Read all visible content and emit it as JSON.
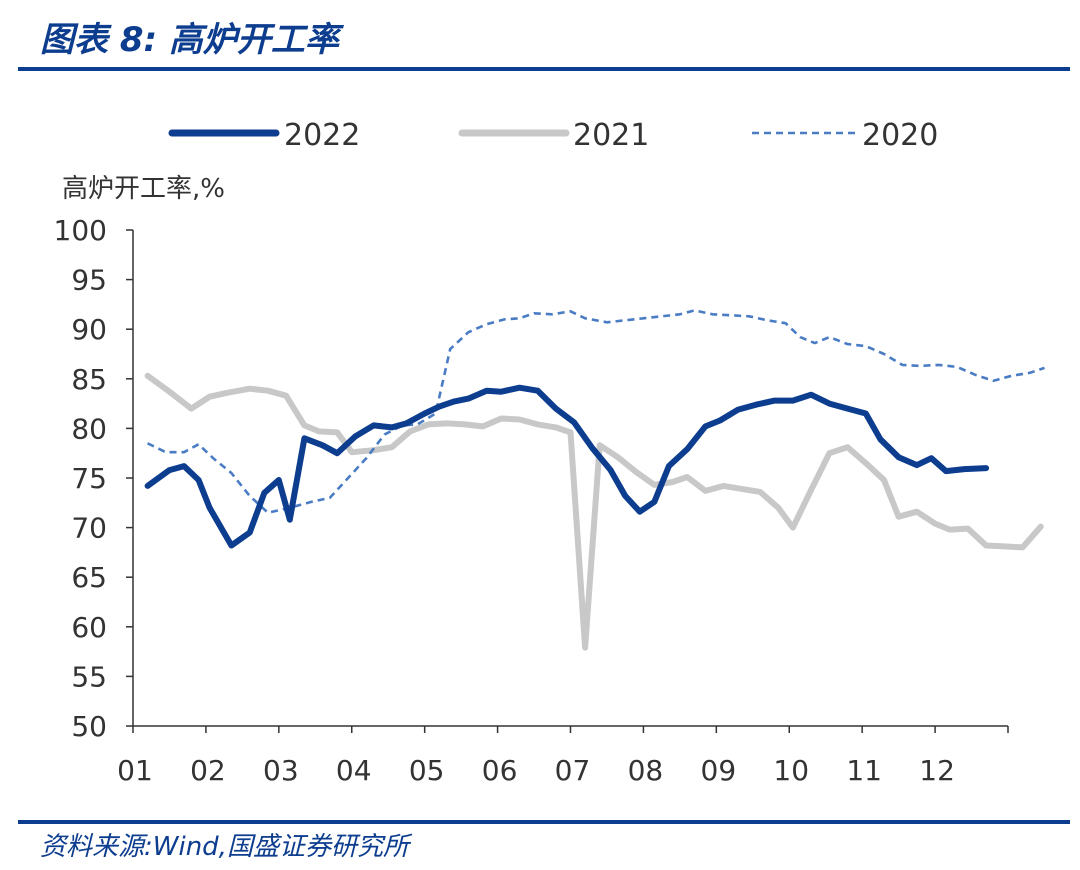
{
  "header": {
    "title": "图表 8:  高炉开工率"
  },
  "footer": {
    "source": "资料来源:Wind,国盛证券研究所"
  },
  "chart_data": {
    "type": "line",
    "ylabel": "高炉开工率,%",
    "ylim": [
      50,
      100
    ],
    "yticks": [
      "100",
      "95",
      "90",
      "85",
      "80",
      "75",
      "70",
      "65",
      "60",
      "55",
      "50"
    ],
    "categories": [
      "01",
      "02",
      "03",
      "04",
      "05",
      "06",
      "07",
      "08",
      "09",
      "10",
      "11",
      "12"
    ],
    "legend_position": "top",
    "series": [
      {
        "name": "2022",
        "color": "#0d3d8f",
        "style": "solid-thick",
        "points": [
          [
            1.2,
            74.2
          ],
          [
            1.5,
            75.8
          ],
          [
            1.7,
            76.2
          ],
          [
            1.9,
            74.8
          ],
          [
            2.05,
            72.0
          ],
          [
            2.35,
            68.2
          ],
          [
            2.6,
            69.5
          ],
          [
            2.8,
            73.5
          ],
          [
            3.0,
            74.8
          ],
          [
            3.15,
            70.8
          ],
          [
            3.35,
            79.0
          ],
          [
            3.6,
            78.3
          ],
          [
            3.8,
            77.5
          ],
          [
            4.05,
            79.2
          ],
          [
            4.3,
            80.3
          ],
          [
            4.55,
            80.1
          ],
          [
            4.75,
            80.5
          ],
          [
            5.0,
            81.5
          ],
          [
            5.2,
            82.2
          ],
          [
            5.4,
            82.7
          ],
          [
            5.6,
            83.0
          ],
          [
            5.85,
            83.8
          ],
          [
            6.05,
            83.7
          ],
          [
            6.3,
            84.1
          ],
          [
            6.55,
            83.8
          ],
          [
            6.8,
            82.0
          ],
          [
            7.05,
            80.6
          ],
          [
            7.3,
            78.0
          ],
          [
            7.55,
            75.8
          ],
          [
            7.75,
            73.2
          ],
          [
            7.95,
            71.6
          ],
          [
            8.15,
            72.6
          ],
          [
            8.35,
            76.2
          ],
          [
            8.6,
            77.9
          ],
          [
            8.85,
            80.2
          ],
          [
            9.05,
            80.8
          ],
          [
            9.3,
            81.9
          ],
          [
            9.55,
            82.4
          ],
          [
            9.8,
            82.8
          ],
          [
            10.05,
            82.8
          ],
          [
            10.3,
            83.4
          ],
          [
            10.55,
            82.5
          ],
          [
            10.8,
            82.0
          ],
          [
            11.05,
            81.5
          ],
          [
            11.25,
            78.9
          ],
          [
            11.5,
            77.1
          ],
          [
            11.75,
            76.3
          ],
          [
            11.95,
            77.0
          ],
          [
            12.15,
            75.7
          ],
          [
            12.4,
            75.9
          ],
          [
            12.7,
            76.0
          ]
        ]
      },
      {
        "name": "2021",
        "color": "#c8c8c8",
        "style": "solid-thick",
        "points": [
          [
            1.2,
            85.3
          ],
          [
            1.5,
            83.7
          ],
          [
            1.8,
            82.0
          ],
          [
            2.05,
            83.2
          ],
          [
            2.3,
            83.6
          ],
          [
            2.6,
            84.0
          ],
          [
            2.85,
            83.8
          ],
          [
            3.1,
            83.3
          ],
          [
            3.35,
            80.3
          ],
          [
            3.55,
            79.7
          ],
          [
            3.8,
            79.6
          ],
          [
            4.0,
            77.6
          ],
          [
            4.3,
            77.8
          ],
          [
            4.55,
            78.1
          ],
          [
            4.8,
            79.7
          ],
          [
            5.05,
            80.4
          ],
          [
            5.3,
            80.5
          ],
          [
            5.55,
            80.4
          ],
          [
            5.8,
            80.2
          ],
          [
            6.05,
            81.0
          ],
          [
            6.3,
            80.9
          ],
          [
            6.55,
            80.4
          ],
          [
            6.8,
            80.1
          ],
          [
            7.0,
            79.6
          ],
          [
            7.2,
            57.9
          ],
          [
            7.4,
            78.3
          ],
          [
            7.65,
            77.1
          ],
          [
            7.9,
            75.6
          ],
          [
            8.15,
            74.3
          ],
          [
            8.4,
            74.6
          ],
          [
            8.6,
            75.1
          ],
          [
            8.85,
            73.7
          ],
          [
            9.1,
            74.2
          ],
          [
            9.35,
            73.9
          ],
          [
            9.6,
            73.6
          ],
          [
            9.85,
            72.0
          ],
          [
            10.05,
            70.0
          ],
          [
            10.3,
            73.8
          ],
          [
            10.55,
            77.5
          ],
          [
            10.8,
            78.1
          ],
          [
            11.05,
            76.5
          ],
          [
            11.3,
            74.8
          ],
          [
            11.5,
            71.1
          ],
          [
            11.75,
            71.6
          ],
          [
            12.0,
            70.4
          ],
          [
            12.2,
            69.8
          ],
          [
            12.45,
            69.9
          ],
          [
            12.7,
            68.2
          ],
          [
            12.95,
            68.1
          ],
          [
            13.2,
            68.0
          ],
          [
            13.45,
            70.1
          ]
        ]
      },
      {
        "name": "2020",
        "color": "#4a7cc4",
        "style": "dashed",
        "points": [
          [
            1.2,
            78.5
          ],
          [
            1.45,
            77.6
          ],
          [
            1.7,
            77.6
          ],
          [
            1.9,
            78.4
          ],
          [
            2.1,
            77.0
          ],
          [
            2.35,
            75.5
          ],
          [
            2.6,
            73.2
          ],
          [
            2.85,
            71.5
          ],
          [
            3.15,
            72.0
          ],
          [
            3.45,
            72.6
          ],
          [
            3.7,
            73.0
          ],
          [
            3.95,
            75.0
          ],
          [
            4.2,
            77.0
          ],
          [
            4.45,
            79.4
          ],
          [
            4.7,
            80.3
          ],
          [
            4.9,
            80.4
          ],
          [
            5.15,
            81.5
          ],
          [
            5.35,
            88.0
          ],
          [
            5.6,
            89.7
          ],
          [
            5.85,
            90.5
          ],
          [
            6.1,
            91.0
          ],
          [
            6.3,
            91.1
          ],
          [
            6.5,
            91.6
          ],
          [
            6.75,
            91.5
          ],
          [
            7.0,
            91.8
          ],
          [
            7.2,
            91.1
          ],
          [
            7.5,
            90.7
          ],
          [
            7.75,
            90.9
          ],
          [
            8.0,
            91.1
          ],
          [
            8.25,
            91.3
          ],
          [
            8.5,
            91.5
          ],
          [
            8.7,
            91.9
          ],
          [
            8.95,
            91.5
          ],
          [
            9.2,
            91.4
          ],
          [
            9.45,
            91.3
          ],
          [
            9.7,
            90.9
          ],
          [
            9.95,
            90.6
          ],
          [
            10.15,
            89.2
          ],
          [
            10.35,
            88.6
          ],
          [
            10.55,
            89.2
          ],
          [
            10.8,
            88.5
          ],
          [
            11.05,
            88.3
          ],
          [
            11.3,
            87.5
          ],
          [
            11.55,
            86.4
          ],
          [
            11.8,
            86.3
          ],
          [
            12.05,
            86.4
          ],
          [
            12.3,
            86.2
          ],
          [
            12.55,
            85.4
          ],
          [
            12.8,
            84.8
          ],
          [
            13.05,
            85.3
          ],
          [
            13.3,
            85.6
          ],
          [
            13.5,
            86.1
          ]
        ]
      }
    ]
  }
}
